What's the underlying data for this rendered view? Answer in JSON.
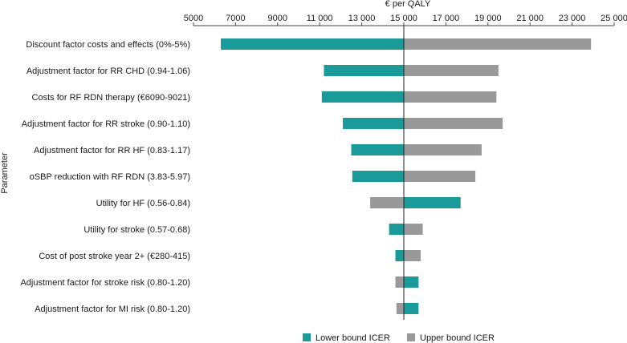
{
  "chart_data": {
    "type": "bar",
    "subtype": "tornado",
    "title": "€ per QALY",
    "xlabel": "€ per QALY",
    "ylabel": "Parameter",
    "baseline": 15000,
    "xlim": [
      5000,
      25000
    ],
    "xticks": [
      5000,
      7000,
      9000,
      11000,
      13000,
      15000,
      17000,
      19000,
      21000,
      23000,
      25000
    ],
    "xtick_labels": [
      "5000",
      "7000",
      "9000",
      "11 000",
      "13 000",
      "15 000",
      "17 000",
      "19 000",
      "21 000",
      "23 000",
      "25 000"
    ],
    "categories": [
      "Discount factor costs and effects (0%-5%)",
      "Adjustment factor for RR CHD (0.94-1.06)",
      "Costs for RF RDN therapy (€6090-9021)",
      "Adjustment factor for RR stroke (0.90-1.10)",
      "Adjustment factor for RR HF (0.83-1.17)",
      "oSBP reduction with RF RDN (3.83-5.97)",
      "Utility for HF (0.56-0.84)",
      "Utility for stroke (0.57-0.68)",
      "Cost of post stroke year 2+ (€280-415)",
      "Adjustment factor for stroke risk (0.80-1.20)",
      "Adjustment factor for MI risk (0.80-1.20)"
    ],
    "series": [
      {
        "name": "Lower bound ICER",
        "color": "#1a9a99",
        "values": [
          6300,
          11200,
          11100,
          12100,
          12500,
          12550,
          17700,
          14300,
          14600,
          15700,
          15700
        ]
      },
      {
        "name": "Upper bound ICER",
        "color": "#999999",
        "values": [
          23900,
          19500,
          19400,
          19700,
          18700,
          18400,
          13400,
          15900,
          15800,
          14600,
          14650
        ]
      }
    ],
    "legend": {
      "position": "bottom",
      "items": [
        "Lower bound ICER",
        "Upper bound ICER"
      ]
    }
  }
}
